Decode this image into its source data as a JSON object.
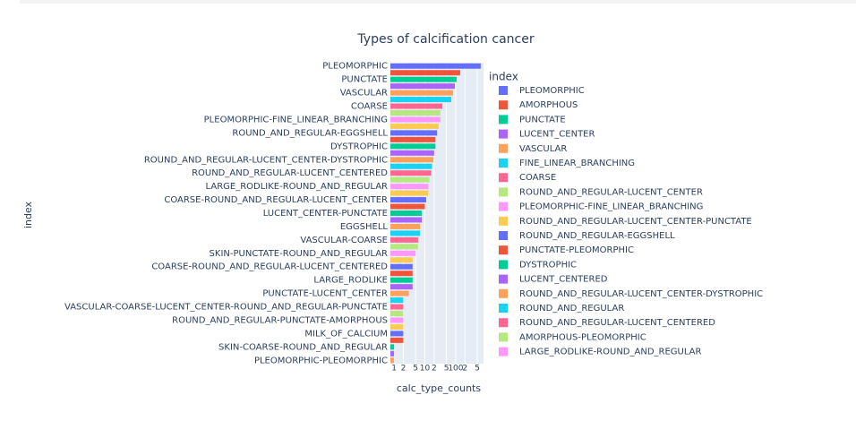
{
  "chart_data": {
    "type": "bar",
    "orientation": "horizontal",
    "title": "Types of calcification cancer",
    "x_label": "calc_type_counts",
    "y_label": "index",
    "legend_title": "index",
    "categories": [
      "PLEOMORPHIC",
      null,
      "PUNCTATE",
      null,
      "VASCULAR",
      null,
      "COARSE",
      null,
      "PLEOMORPHIC-FINE_LINEAR_BRANCHING",
      null,
      "ROUND_AND_REGULAR-EGGSHELL",
      null,
      "DYSTROPHIC",
      null,
      "ROUND_AND_REGULAR-LUCENT_CENTER-DYSTROPHIC",
      null,
      "ROUND_AND_REGULAR-LUCENT_CENTERED",
      null,
      "LARGE_RODLIKE-ROUND_AND_REGULAR",
      null,
      "COARSE-ROUND_AND_REGULAR-LUCENT_CENTER",
      null,
      "LUCENT_CENTER-PUNCTATE",
      null,
      "EGGSHELL",
      null,
      "VASCULAR-COARSE",
      null,
      "SKIN-PUNCTATE-ROUND_AND_REGULAR",
      null,
      "COARSE-ROUND_AND_REGULAR-LUCENT_CENTERED",
      null,
      "LARGE_RODLIKE",
      null,
      "PUNCTATE-LUCENT_CENTER",
      null,
      "VASCULAR-COARSE-LUCENT_CENTER-ROUND_AND_REGULAR-PUNCTATE",
      null,
      "ROUND_AND_REGULAR-PUNCTATE-AMORPHOUS",
      null,
      "MILK_OF_CALCIUM",
      null,
      "SKIN-COARSE-ROUND_AND_REGULAR",
      null,
      "PLEOMORPHIC-PLEOMORPHIC"
    ],
    "values": [
      650,
      140,
      107,
      94,
      82,
      72,
      37,
      32,
      32,
      28,
      25,
      22,
      22,
      20,
      19,
      17,
      16,
      14,
      13,
      13,
      11,
      10,
      8,
      8,
      7,
      7,
      6,
      6,
      5,
      4,
      4,
      4,
      4,
      4,
      3,
      2,
      2,
      2,
      2,
      2,
      2,
      2,
      1,
      1,
      1
    ],
    "colors": [
      "#636efa",
      "#EF553B",
      "#00cc96",
      "#ab63fa",
      "#FFA15A",
      "#19d3f3",
      "#FF6692",
      "#B6E880",
      "#FF97FF",
      "#FECB52",
      "#636efa",
      "#EF553B",
      "#00cc96",
      "#ab63fa",
      "#FFA15A",
      "#19d3f3",
      "#FF6692",
      "#B6E880",
      "#FF97FF",
      "#FECB52",
      "#636efa",
      "#EF553B",
      "#00cc96",
      "#ab63fa",
      "#FFA15A",
      "#19d3f3",
      "#FF6692",
      "#B6E880",
      "#FF97FF",
      "#FECB52",
      "#636efa",
      "#EF553B",
      "#00cc96",
      "#ab63fa",
      "#FFA15A",
      "#19d3f3",
      "#FF6692",
      "#B6E880",
      "#FF97FF",
      "#FECB52",
      "#636efa",
      "#EF553B",
      "#00cc96",
      "#ab63fa",
      "#FFA15A"
    ],
    "legend": [
      "PLEOMORPHIC",
      "AMORPHOUS",
      "PUNCTATE",
      "LUCENT_CENTER",
      "VASCULAR",
      "FINE_LINEAR_BRANCHING",
      "COARSE",
      "ROUND_AND_REGULAR-LUCENT_CENTER",
      "PLEOMORPHIC-FINE_LINEAR_BRANCHING",
      "ROUND_AND_REGULAR-LUCENT_CENTER-PUNCTATE",
      "ROUND_AND_REGULAR-EGGSHELL",
      "PUNCTATE-PLEOMORPHIC",
      "DYSTROPHIC",
      "LUCENT_CENTERED",
      "ROUND_AND_REGULAR-LUCENT_CENTER-DYSTROPHIC",
      "ROUND_AND_REGULAR",
      "ROUND_AND_REGULAR-LUCENT_CENTERED",
      "AMORPHOUS-PLEOMORPHIC",
      "LARGE_RODLIKE-ROUND_AND_REGULAR"
    ],
    "log_x": true,
    "xlim": [
      0.76,
      800
    ],
    "xticks": [
      1,
      2,
      5,
      10,
      {
        "value": 20,
        "label": "2"
      },
      {
        "value": 50,
        "label": "5"
      },
      100,
      {
        "value": 200,
        "label": "2"
      },
      {
        "value": 500,
        "label": "5"
      }
    ],
    "grid": true
  }
}
